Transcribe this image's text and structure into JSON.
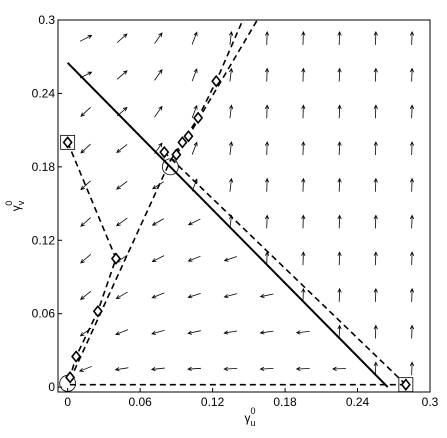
{
  "chart_data": {
    "type": "quiver",
    "xlabel": {
      "symbol": "γ",
      "subscript": "u",
      "superscript": "0"
    },
    "ylabel": {
      "symbol": "γ",
      "subscript": "v",
      "superscript": "0"
    },
    "xlim": [
      -0.008,
      0.3
    ],
    "ylim": [
      -0.004,
      0.3
    ],
    "xticks": [
      0,
      0.06,
      0.12,
      0.18,
      0.24,
      0.3
    ],
    "yticks": [
      0,
      0.06,
      0.12,
      0.18,
      0.24,
      0.3
    ],
    "field": {
      "x": [
        0.015,
        0.045,
        0.075,
        0.105,
        0.135,
        0.165,
        0.195,
        0.225,
        0.255,
        0.285
      ],
      "y": [
        0.015,
        0.045,
        0.075,
        0.105,
        0.135,
        0.165,
        0.195,
        0.225,
        0.255,
        0.285
      ],
      "angle": [
        [
          202,
          189,
          186,
          184,
          183,
          183,
          182,
          182,
          88,
          88
        ],
        [
          216,
          202,
          196,
          192,
          189,
          188,
          186,
          88,
          88,
          88
        ],
        [
          219,
          210,
          202,
          198,
          195,
          192,
          88,
          88,
          88,
          88
        ],
        [
          221,
          213,
          207,
          202,
          199,
          88,
          88,
          88,
          88,
          88
        ],
        [
          222,
          216,
          210,
          206,
          83,
          88,
          88,
          88,
          88,
          88
        ],
        [
          222,
          217,
          213,
          69,
          83,
          88,
          88,
          88,
          88,
          88
        ],
        [
          223,
          218,
          55,
          69,
          83,
          88,
          88,
          88,
          88,
          88
        ],
        [
          223,
          41,
          55,
          69,
          83,
          88,
          88,
          88,
          88,
          88
        ],
        [
          27,
          41,
          55,
          69,
          83,
          88,
          88,
          88,
          88,
          88
        ],
        [
          27,
          41,
          55,
          69,
          83,
          88,
          88,
          88,
          88,
          88
        ]
      ],
      "color": "#000000"
    },
    "lines": [
      {
        "style": "solid",
        "x": [
          0,
          0.265
        ],
        "y": [
          0.265,
          0
        ]
      },
      {
        "style": "dashed",
        "x": [
          0,
          0.04,
          0.025,
          0.007,
          0.002,
          0
        ],
        "y": [
          0.2,
          0.105,
          0.062,
          0.025,
          0.008,
          0.003
        ]
      },
      {
        "style": "dashed",
        "x": [
          0.002,
          0.085,
          0.108,
          0.123,
          0.145
        ],
        "y": [
          0.006,
          0.185,
          0.22,
          0.25,
          0.3
        ]
      },
      {
        "style": "dashed",
        "x": [
          0.28,
          0.08
        ],
        "y": [
          0.002,
          0.192
        ]
      },
      {
        "style": "dashed",
        "x": [
          0.28,
          0
        ],
        "y": [
          0.002,
          0.002
        ]
      },
      {
        "style": "dashed",
        "x": [
          0.09,
          0.1,
          0.157
        ],
        "y": [
          0.19,
          0.205,
          0.3
        ]
      }
    ],
    "diamonds": {
      "x": [
        0,
        0.04,
        0.025,
        0.007,
        0.002,
        0.28,
        0.08,
        0.09,
        0.095,
        0.1,
        0.108,
        0.123
      ],
      "y": [
        0.2,
        0.105,
        0.062,
        0.025,
        0.008,
        0.002,
        0.192,
        0.19,
        0.2,
        0.205,
        0.22,
        0.25
      ]
    },
    "squares": {
      "x": [
        0,
        0.28
      ],
      "y": [
        0.2,
        0.002
      ]
    },
    "circles": {
      "x": [
        0,
        0.085
      ],
      "y": [
        0.003,
        0.18
      ]
    }
  }
}
